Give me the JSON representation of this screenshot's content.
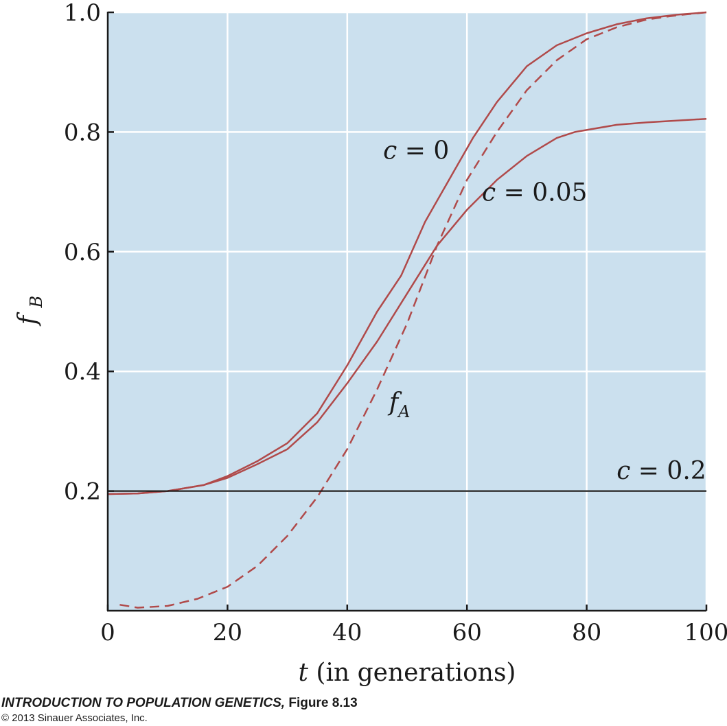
{
  "chart_data": {
    "type": "line",
    "xlabel_var": "t",
    "xlabel_rest": "(in generations)",
    "ylabel_main": "f",
    "ylabel_sub": "B",
    "xlim": [
      0,
      100
    ],
    "ylim": [
      0,
      1.0
    ],
    "xticks": [
      0,
      20,
      40,
      60,
      80,
      100
    ],
    "xtick_labels": [
      "0",
      "20",
      "40",
      "60",
      "80",
      "100"
    ],
    "yticks": [
      0.2,
      0.4,
      0.6,
      0.8,
      1.0
    ],
    "ytick_labels": [
      "0.2",
      "0.4",
      "0.6",
      "0.8",
      "1.0"
    ],
    "grid": true,
    "colors": {
      "background": "#cbe0ee",
      "curve": "#b04a4a",
      "baseline": "#1a1a1a",
      "grid": "#ffffff"
    },
    "series": [
      {
        "name": "c = 0",
        "style": "solid",
        "x": [
          0,
          5,
          10,
          16,
          20,
          25,
          30,
          35,
          40,
          45,
          49,
          53,
          57,
          61,
          65,
          70,
          75,
          80,
          85,
          90,
          95,
          100
        ],
        "y": [
          0.195,
          0.196,
          0.2,
          0.21,
          0.225,
          0.25,
          0.28,
          0.33,
          0.41,
          0.5,
          0.56,
          0.65,
          0.72,
          0.79,
          0.85,
          0.91,
          0.945,
          0.965,
          0.98,
          0.99,
          0.996,
          1.0
        ]
      },
      {
        "name": "c = 0.05",
        "style": "solid",
        "x": [
          0,
          5,
          10,
          16,
          20,
          25,
          30,
          35,
          40,
          45,
          50,
          55,
          60,
          65,
          70,
          75,
          78,
          85,
          90,
          100
        ],
        "y": [
          0.195,
          0.196,
          0.2,
          0.21,
          0.222,
          0.245,
          0.27,
          0.315,
          0.38,
          0.45,
          0.53,
          0.61,
          0.67,
          0.72,
          0.76,
          0.79,
          0.8,
          0.812,
          0.816,
          0.822
        ]
      },
      {
        "name": "f_A",
        "style": "dashed",
        "x": [
          2,
          5,
          10,
          15,
          20,
          25,
          30,
          35,
          40,
          45,
          50,
          55,
          60,
          65,
          70,
          75,
          80,
          85,
          90,
          95,
          100
        ],
        "y": [
          0.01,
          0.005,
          0.008,
          0.02,
          0.04,
          0.075,
          0.125,
          0.19,
          0.27,
          0.37,
          0.48,
          0.61,
          0.72,
          0.8,
          0.87,
          0.92,
          0.955,
          0.975,
          0.988,
          0.995,
          1.0
        ]
      },
      {
        "name": "c = 0.2",
        "style": "solid-black",
        "x": [
          0,
          100
        ],
        "y": [
          0.2,
          0.2
        ]
      }
    ],
    "annotations": [
      {
        "var": "c",
        "rest": "= 0",
        "x": 46,
        "y": 0.755
      },
      {
        "var": "c",
        "rest": "= 0.05",
        "x": 62.5,
        "y": 0.685
      },
      {
        "var": "f",
        "sub": "A",
        "x": 47,
        "y": 0.335
      },
      {
        "var": "c",
        "rest": "= 0.2",
        "x": 85,
        "y": 0.22
      }
    ]
  },
  "caption": {
    "book": "INTRODUCTION TO POPULATION GENETICS,",
    "figure": "Figure 8.13",
    "copyright": "© 2013 Sinauer Associates, Inc."
  }
}
